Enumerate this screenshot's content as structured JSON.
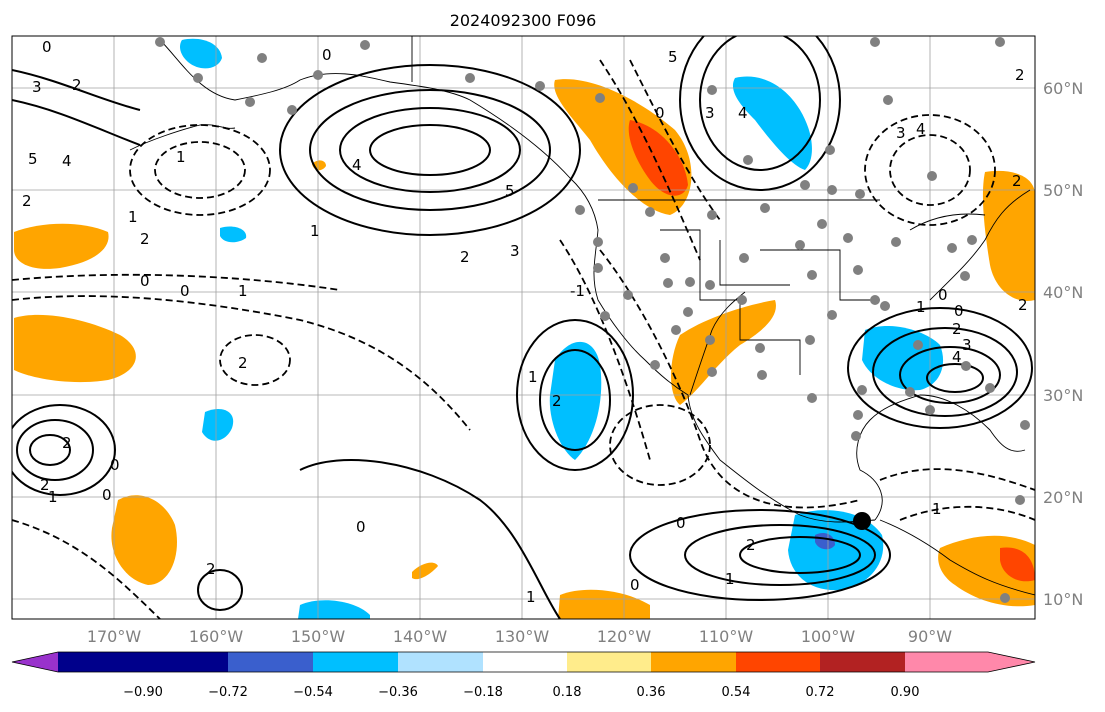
{
  "title": "2024092300 F096",
  "map": {
    "lat_labels": [
      "60°N",
      "50°N",
      "40°N",
      "30°N",
      "20°N",
      "10°N"
    ],
    "lon_labels": [
      "170°W",
      "160°W",
      "150°W",
      "140°W",
      "130°W",
      "120°W",
      "110°W",
      "100°W",
      "90°W"
    ],
    "contour_labels": [
      "0",
      "3",
      "2",
      "5",
      "4",
      "1",
      "2",
      "1",
      "0",
      "1",
      "2",
      "3",
      "4",
      "5",
      "2",
      "1",
      "0",
      "0",
      "2",
      "2",
      "1",
      "2",
      "0",
      "1",
      "2",
      "0",
      "0",
      "1",
      "2",
      "3",
      "4",
      "5",
      "4",
      "3",
      "2",
      "0",
      "1",
      "2",
      "3",
      "4",
      "0",
      "2",
      "1",
      "0",
      "1",
      "2",
      "2",
      "0",
      "-1",
      "0"
    ],
    "station_marker": "gray circle",
    "highlight_marker": "black circle"
  },
  "colorbar": {
    "tick_labels": [
      "−0.90",
      "−0.72",
      "−0.54",
      "−0.36",
      "−0.18",
      "0.18",
      "0.36",
      "0.54",
      "0.72",
      "0.90"
    ],
    "colors": [
      "#9932cc",
      "#00008b",
      "#3a5fcd",
      "#00bfff",
      "#b0e2ff",
      "#ffffff",
      "#ffec8b",
      "#ffa500",
      "#ff4500",
      "#b22222",
      "#ff88aa"
    ]
  }
}
